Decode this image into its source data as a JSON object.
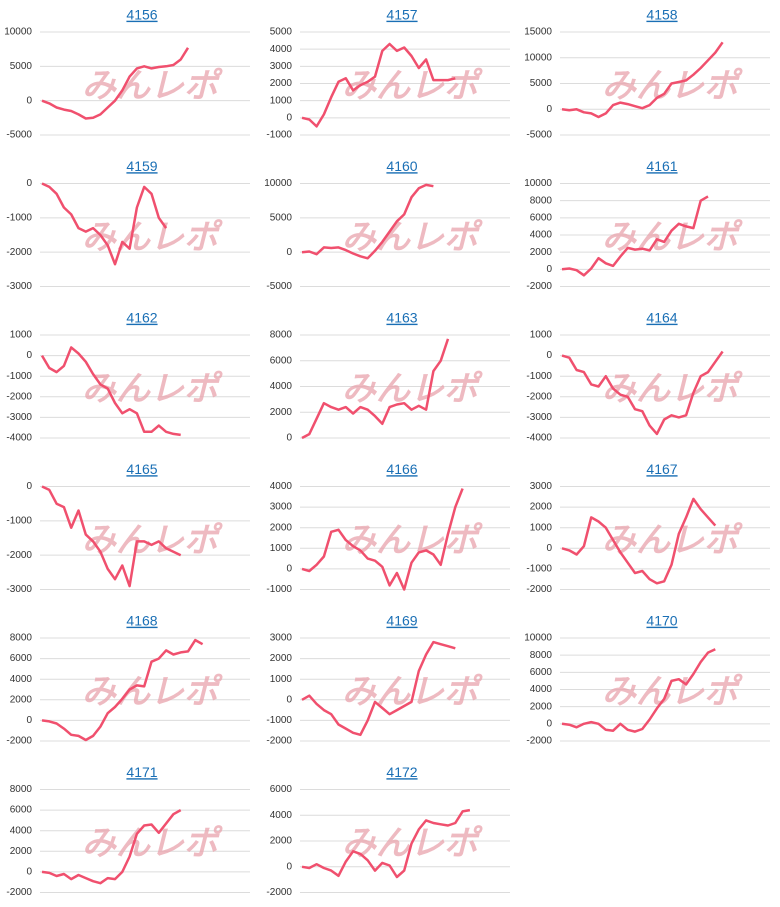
{
  "watermark": "みんレポ",
  "chart_data": [
    {
      "type": "line",
      "title": "4156",
      "color": "#f0506e",
      "ylim": [
        -5000,
        10000
      ],
      "yticks": [
        -5000,
        0,
        5000,
        10000
      ],
      "grid": true,
      "values": [
        0,
        -400,
        -1000,
        -1300,
        -1500,
        -2000,
        -2600,
        -2500,
        -2000,
        -1000,
        0,
        1500,
        3500,
        4700,
        5000,
        4700,
        4900,
        5000,
        5200,
        6000,
        7700
      ]
    },
    {
      "type": "line",
      "title": "4157",
      "color": "#f0506e",
      "ylim": [
        -1000,
        5000
      ],
      "yticks": [
        -1000,
        0,
        1000,
        2000,
        3000,
        4000,
        5000
      ],
      "grid": true,
      "values": [
        0,
        -100,
        -500,
        200,
        1200,
        2100,
        2300,
        1600,
        1900,
        2100,
        2400,
        3900,
        4300,
        3900,
        4100,
        3600,
        2900,
        3400,
        2200,
        2200,
        2200,
        2300
      ]
    },
    {
      "type": "line",
      "title": "4158",
      "color": "#f0506e",
      "ylim": [
        -5000,
        15000
      ],
      "yticks": [
        -5000,
        0,
        5000,
        10000,
        15000
      ],
      "grid": true,
      "values": [
        0,
        -200,
        0,
        -600,
        -800,
        -1500,
        -800,
        800,
        1300,
        1000,
        600,
        200,
        800,
        2200,
        3000,
        5000,
        5300,
        5600,
        6700,
        8000,
        9500,
        11000,
        13000
      ]
    },
    {
      "type": "line",
      "title": "4159",
      "color": "#f0506e",
      "ylim": [
        -3000,
        0
      ],
      "yticks": [
        -3000,
        -2000,
        -1000,
        0
      ],
      "grid": true,
      "values": [
        0,
        -100,
        -300,
        -700,
        -900,
        -1300,
        -1400,
        -1300,
        -1500,
        -1800,
        -2350,
        -1700,
        -1900,
        -700,
        -100,
        -300,
        -1000,
        -1300
      ]
    },
    {
      "type": "line",
      "title": "4160",
      "color": "#f0506e",
      "ylim": [
        -5000,
        10000
      ],
      "yticks": [
        -5000,
        0,
        5000,
        10000
      ],
      "grid": true,
      "values": [
        0,
        100,
        -300,
        700,
        600,
        700,
        300,
        -200,
        -600,
        -900,
        200,
        1500,
        3000,
        4500,
        5500,
        8000,
        9300,
        9800,
        9600
      ]
    },
    {
      "type": "line",
      "title": "4161",
      "color": "#f0506e",
      "ylim": [
        -2000,
        10000
      ],
      "yticks": [
        -2000,
        0,
        2000,
        4000,
        6000,
        8000,
        10000
      ],
      "grid": true,
      "values": [
        0,
        100,
        -100,
        -700,
        100,
        1300,
        700,
        400,
        1500,
        2500,
        2300,
        2400,
        2200,
        3500,
        3200,
        4500,
        5300,
        5000,
        4800,
        8000,
        8500
      ]
    },
    {
      "type": "line",
      "title": "4162",
      "color": "#f0506e",
      "ylim": [
        -4000,
        1000
      ],
      "yticks": [
        -4000,
        -3000,
        -2000,
        -1000,
        0,
        1000
      ],
      "grid": true,
      "values": [
        0,
        -600,
        -800,
        -500,
        400,
        100,
        -300,
        -900,
        -1400,
        -1600,
        -2300,
        -2800,
        -2600,
        -2800,
        -3700,
        -3700,
        -3400,
        -3700,
        -3800,
        -3850
      ]
    },
    {
      "type": "line",
      "title": "4163",
      "color": "#f0506e",
      "ylim": [
        0,
        8000
      ],
      "yticks": [
        0,
        2000,
        4000,
        6000,
        8000
      ],
      "grid": true,
      "values": [
        0,
        300,
        1500,
        2700,
        2400,
        2200,
        2400,
        1900,
        2400,
        2200,
        1700,
        1100,
        2400,
        2600,
        2700,
        2200,
        2500,
        2200,
        5200,
        6000,
        7700
      ]
    },
    {
      "type": "line",
      "title": "4164",
      "color": "#f0506e",
      "ylim": [
        -4000,
        1000
      ],
      "yticks": [
        -4000,
        -3000,
        -2000,
        -1000,
        0,
        1000
      ],
      "grid": true,
      "values": [
        0,
        -100,
        -700,
        -800,
        -1400,
        -1500,
        -1000,
        -1600,
        -1900,
        -2000,
        -2600,
        -2700,
        -3400,
        -3800,
        -3100,
        -2900,
        -3000,
        -2900,
        -1800,
        -1000,
        -800,
        -300,
        200
      ]
    },
    {
      "type": "line",
      "title": "4165",
      "color": "#f0506e",
      "ylim": [
        -3000,
        0
      ],
      "yticks": [
        -3000,
        -2000,
        -1000,
        0
      ],
      "grid": true,
      "values": [
        0,
        -100,
        -500,
        -600,
        -1200,
        -700,
        -1400,
        -1600,
        -1900,
        -2400,
        -2700,
        -2300,
        -2900,
        -1600,
        -1600,
        -1700,
        -1600,
        -1800,
        -1900,
        -2000
      ]
    },
    {
      "type": "line",
      "title": "4166",
      "color": "#f0506e",
      "ylim": [
        -1000,
        4000
      ],
      "yticks": [
        -1000,
        0,
        1000,
        2000,
        3000,
        4000
      ],
      "grid": true,
      "values": [
        0,
        -100,
        200,
        600,
        1800,
        1900,
        1400,
        1100,
        900,
        500,
        400,
        100,
        -800,
        -200,
        -1000,
        300,
        800,
        900,
        700,
        200,
        1700,
        3000,
        3900
      ]
    },
    {
      "type": "line",
      "title": "4167",
      "color": "#f0506e",
      "ylim": [
        -2000,
        3000
      ],
      "yticks": [
        -2000,
        -1000,
        0,
        1000,
        2000,
        3000
      ],
      "grid": true,
      "values": [
        0,
        -100,
        -300,
        100,
        1500,
        1300,
        1000,
        400,
        -200,
        -700,
        -1200,
        -1100,
        -1500,
        -1700,
        -1600,
        -800,
        700,
        1500,
        2400,
        1900,
        1500,
        1100
      ]
    },
    {
      "type": "line",
      "title": "4168",
      "color": "#f0506e",
      "ylim": [
        -2000,
        8000
      ],
      "yticks": [
        -2000,
        0,
        2000,
        4000,
        6000,
        8000
      ],
      "grid": true,
      "values": [
        0,
        -100,
        -300,
        -800,
        -1400,
        -1500,
        -1900,
        -1500,
        -600,
        700,
        1300,
        2100,
        3000,
        3400,
        3300,
        5700,
        6000,
        6800,
        6400,
        6600,
        6700,
        7800,
        7400
      ]
    },
    {
      "type": "line",
      "title": "4169",
      "color": "#f0506e",
      "ylim": [
        -2000,
        3000
      ],
      "yticks": [
        -2000,
        -1000,
        0,
        1000,
        2000,
        3000
      ],
      "grid": true,
      "values": [
        0,
        200,
        -200,
        -500,
        -700,
        -1200,
        -1400,
        -1600,
        -1700,
        -1000,
        -100,
        -400,
        -700,
        -500,
        -300,
        -100,
        1400,
        2200,
        2800,
        2700,
        2600,
        2500
      ]
    },
    {
      "type": "line",
      "title": "4170",
      "color": "#f0506e",
      "ylim": [
        -2000,
        10000
      ],
      "yticks": [
        -2000,
        0,
        2000,
        4000,
        6000,
        8000,
        10000
      ],
      "grid": true,
      "values": [
        0,
        -100,
        -400,
        0,
        200,
        0,
        -700,
        -800,
        0,
        -700,
        -900,
        -600,
        500,
        1800,
        2900,
        5000,
        5200,
        4600,
        5800,
        7200,
        8300,
        8700
      ]
    },
    {
      "type": "line",
      "title": "4171",
      "color": "#f0506e",
      "ylim": [
        -2000,
        8000
      ],
      "yticks": [
        -2000,
        0,
        2000,
        4000,
        6000,
        8000
      ],
      "grid": true,
      "values": [
        0,
        -100,
        -400,
        -200,
        -700,
        -300,
        -600,
        -900,
        -1100,
        -600,
        -700,
        0,
        1500,
        3700,
        4500,
        4600,
        3800,
        4700,
        5600,
        6000
      ]
    },
    {
      "type": "line",
      "title": "4172",
      "color": "#f0506e",
      "ylim": [
        -2000,
        6000
      ],
      "yticks": [
        -2000,
        0,
        2000,
        4000,
        6000
      ],
      "grid": true,
      "values": [
        0,
        -100,
        200,
        -100,
        -300,
        -700,
        400,
        1200,
        1000,
        500,
        -300,
        300,
        100,
        -800,
        -300,
        1800,
        2900,
        3600,
        3400,
        3300,
        3200,
        3400,
        4300,
        4400
      ]
    }
  ]
}
